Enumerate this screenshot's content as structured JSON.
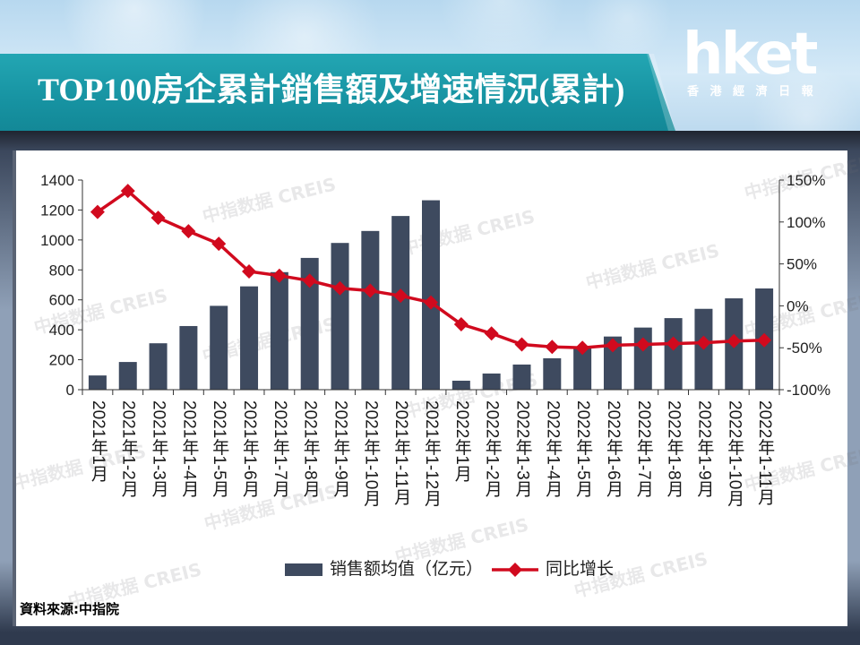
{
  "header": {
    "logo_text": "hket",
    "logo_subtitle": "香 港 經 濟 日 報"
  },
  "source_note": "資料來源:中指院",
  "watermark": "中指数据 CREIS",
  "colors": {
    "bar": "#3e4a5f",
    "line": "#d10a1e"
  },
  "chart_data": {
    "type": "bar",
    "title": "TOP100房企累計銷售額及增速情況(累計)",
    "categories": [
      "2021年1月",
      "2021年1-2月",
      "2021年1-3月",
      "2021年1-4月",
      "2021年1-5月",
      "2021年1-6月",
      "2021年1-7月",
      "2021年1-8月",
      "2021年1-9月",
      "2021年1-10月",
      "2021年1-11月",
      "2021年1-12月",
      "2022年1月",
      "2022年1-2月",
      "2022年1-3月",
      "2022年1-4月",
      "2022年1-5月",
      "2022年1-6月",
      "2022年1-7月",
      "2022年1-8月",
      "2022年1-9月",
      "2022年1-10月",
      "2022年1-11月"
    ],
    "series": [
      {
        "name": "销售额均值（亿元）",
        "type": "bar",
        "axis": "left",
        "values": [
          95,
          185,
          310,
          425,
          560,
          690,
          785,
          880,
          980,
          1060,
          1160,
          1265,
          60,
          108,
          168,
          210,
          280,
          355,
          415,
          478,
          540,
          610,
          676
        ]
      },
      {
        "name": "同比增长",
        "type": "line",
        "axis": "right",
        "unit": "%",
        "marker": "diamond",
        "values": [
          112,
          137,
          105,
          89,
          74,
          41,
          36,
          30,
          21,
          18,
          12,
          4,
          -22,
          -33,
          -46,
          -49,
          -50,
          -47,
          -46,
          -45,
          -44,
          -42,
          -41
        ]
      }
    ],
    "y_left": {
      "min": 0,
      "max": 1400,
      "step": 200,
      "ticks": [
        "0",
        "200",
        "400",
        "600",
        "800",
        "1000",
        "1200",
        "1400"
      ]
    },
    "y_right": {
      "min": -100,
      "max": 150,
      "step": 50,
      "ticks": [
        "-100%",
        "-50%",
        "0%",
        "50%",
        "100%",
        "150%"
      ]
    },
    "grid": false,
    "legend": "bottom"
  }
}
